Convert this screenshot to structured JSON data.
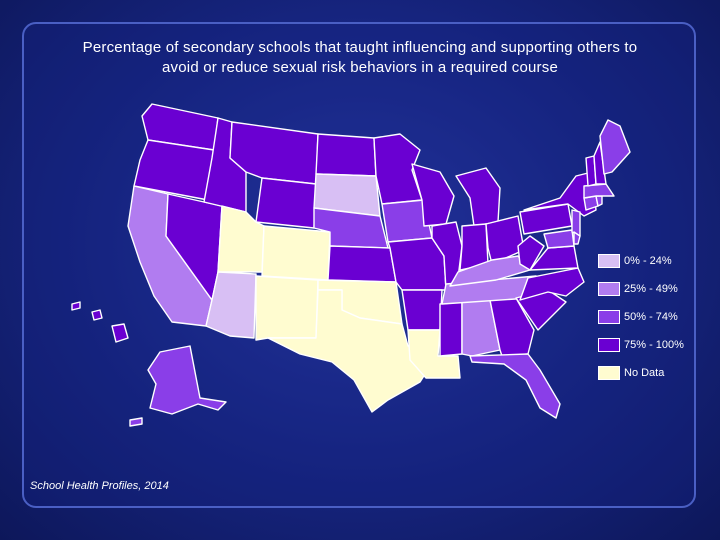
{
  "title": {
    "line1": "Percentage of secondary schools that taught influencing and supporting others to",
    "line2": "avoid or reduce sexual risk behaviors in a required course"
  },
  "legend": [
    {
      "label": "0% - 24%",
      "color": "#d8bff4"
    },
    {
      "label": "25% - 49%",
      "color": "#b17cf0"
    },
    {
      "label": "50% - 74%",
      "color": "#8a3ee8"
    },
    {
      "label": "75% - 100%",
      "color": "#6a00d2"
    },
    {
      "label": "No Data",
      "color": "#fffcd0"
    }
  ],
  "source": "School Health Profiles, 2014"
}
